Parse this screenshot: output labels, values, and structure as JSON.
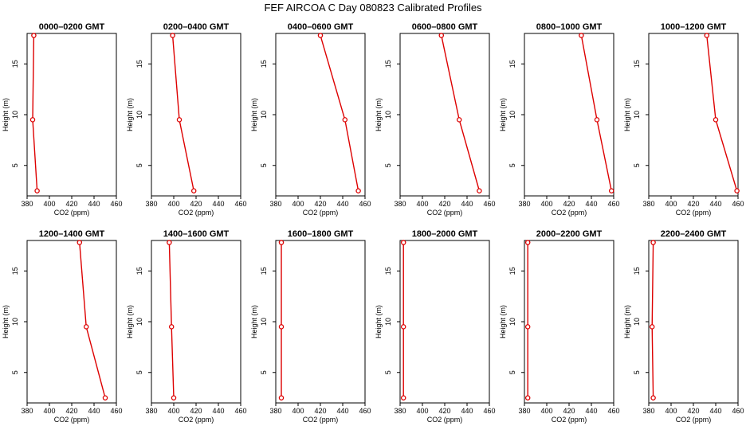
{
  "figure": {
    "title": "FEF AIRCOA C  Day 080823  Calibrated Profiles"
  },
  "colors": {
    "profile_line": "#dd0000",
    "point_marker": "#dd0000",
    "axes": "#000000"
  },
  "chart_data": [
    {
      "type": "line",
      "title": "0000–0200 GMT",
      "xlabel": "CO2 (ppm)",
      "ylabel": "Height (m)",
      "xlim": [
        380,
        460
      ],
      "ylim": [
        2,
        18
      ],
      "xticks": [
        380,
        400,
        420,
        440,
        460
      ],
      "yticks": [
        5,
        10,
        15
      ],
      "series": [
        {
          "x": [
            386,
            385,
            389
          ],
          "y": [
            17.8,
            9.5,
            2.5
          ]
        }
      ]
    },
    {
      "type": "line",
      "title": "0200–0400 GMT",
      "xlabel": "CO2 (ppm)",
      "ylabel": "Height (m)",
      "xlim": [
        380,
        460
      ],
      "ylim": [
        2,
        18
      ],
      "xticks": [
        380,
        400,
        420,
        440,
        460
      ],
      "yticks": [
        5,
        10,
        15
      ],
      "series": [
        {
          "x": [
            399,
            405,
            418
          ],
          "y": [
            17.8,
            9.5,
            2.5
          ]
        }
      ]
    },
    {
      "type": "line",
      "title": "0400–0600 GMT",
      "xlabel": "CO2 (ppm)",
      "ylabel": "Height (m)",
      "xlim": [
        380,
        460
      ],
      "ylim": [
        2,
        18
      ],
      "xticks": [
        380,
        400,
        420,
        440,
        460
      ],
      "yticks": [
        5,
        10,
        15
      ],
      "series": [
        {
          "x": [
            420,
            442,
            454
          ],
          "y": [
            17.8,
            9.5,
            2.5
          ]
        }
      ]
    },
    {
      "type": "line",
      "title": "0600–0800 GMT",
      "xlabel": "CO2 (ppm)",
      "ylabel": "Height (m)",
      "xlim": [
        380,
        460
      ],
      "ylim": [
        2,
        18
      ],
      "xticks": [
        380,
        400,
        420,
        440,
        460
      ],
      "yticks": [
        5,
        10,
        15
      ],
      "series": [
        {
          "x": [
            417,
            433,
            451
          ],
          "y": [
            17.8,
            9.5,
            2.5
          ]
        }
      ]
    },
    {
      "type": "line",
      "title": "0800–1000 GMT",
      "xlabel": "CO2 (ppm)",
      "ylabel": "Height (m)",
      "xlim": [
        380,
        460
      ],
      "ylim": [
        2,
        18
      ],
      "xticks": [
        380,
        400,
        420,
        440,
        460
      ],
      "yticks": [
        5,
        10,
        15
      ],
      "series": [
        {
          "x": [
            431,
            445,
            458
          ],
          "y": [
            17.8,
            9.5,
            2.5
          ]
        }
      ]
    },
    {
      "type": "line",
      "title": "1000–1200 GMT",
      "xlabel": "CO2 (ppm)",
      "ylabel": "Height (m)",
      "xlim": [
        380,
        460
      ],
      "ylim": [
        2,
        18
      ],
      "xticks": [
        380,
        400,
        420,
        440,
        460
      ],
      "yticks": [
        5,
        10,
        15
      ],
      "series": [
        {
          "x": [
            432,
            440,
            459
          ],
          "y": [
            17.8,
            9.5,
            2.5
          ]
        }
      ]
    },
    {
      "type": "line",
      "title": "1200–1400 GMT",
      "xlabel": "CO2 (ppm)",
      "ylabel": "Height (m)",
      "xlim": [
        380,
        460
      ],
      "ylim": [
        2,
        18
      ],
      "xticks": [
        380,
        400,
        420,
        440,
        460
      ],
      "yticks": [
        5,
        10,
        15
      ],
      "series": [
        {
          "x": [
            427,
            433,
            450
          ],
          "y": [
            17.8,
            9.5,
            2.5
          ]
        }
      ]
    },
    {
      "type": "line",
      "title": "1400–1600 GMT",
      "xlabel": "CO2 (ppm)",
      "ylabel": "Height (m)",
      "xlim": [
        380,
        460
      ],
      "ylim": [
        2,
        18
      ],
      "xticks": [
        380,
        400,
        420,
        440,
        460
      ],
      "yticks": [
        5,
        10,
        15
      ],
      "series": [
        {
          "x": [
            396,
            398,
            400
          ],
          "y": [
            17.8,
            9.5,
            2.5
          ]
        }
      ]
    },
    {
      "type": "line",
      "title": "1600–1800 GMT",
      "xlabel": "CO2 (ppm)",
      "ylabel": "Height (m)",
      "xlim": [
        380,
        460
      ],
      "ylim": [
        2,
        18
      ],
      "xticks": [
        380,
        400,
        420,
        440,
        460
      ],
      "yticks": [
        5,
        10,
        15
      ],
      "series": [
        {
          "x": [
            385,
            385,
            385
          ],
          "y": [
            17.8,
            9.5,
            2.5
          ]
        }
      ]
    },
    {
      "type": "line",
      "title": "1800–2000 GMT",
      "xlabel": "CO2 (ppm)",
      "ylabel": "Height (m)",
      "xlim": [
        380,
        460
      ],
      "ylim": [
        2,
        18
      ],
      "xticks": [
        380,
        400,
        420,
        440,
        460
      ],
      "yticks": [
        5,
        10,
        15
      ],
      "series": [
        {
          "x": [
            383,
            383,
            383
          ],
          "y": [
            17.8,
            9.5,
            2.5
          ]
        }
      ]
    },
    {
      "type": "line",
      "title": "2000–2200 GMT",
      "xlabel": "CO2 (ppm)",
      "ylabel": "Height (m)",
      "xlim": [
        380,
        460
      ],
      "ylim": [
        2,
        18
      ],
      "xticks": [
        380,
        400,
        420,
        440,
        460
      ],
      "yticks": [
        5,
        10,
        15
      ],
      "series": [
        {
          "x": [
            383,
            383,
            383
          ],
          "y": [
            17.8,
            9.5,
            2.5
          ]
        }
      ]
    },
    {
      "type": "line",
      "title": "2200–2400 GMT",
      "xlabel": "CO2 (ppm)",
      "ylabel": "Height (m)",
      "xlim": [
        380,
        460
      ],
      "ylim": [
        2,
        18
      ],
      "xticks": [
        380,
        400,
        420,
        440,
        460
      ],
      "yticks": [
        5,
        10,
        15
      ],
      "series": [
        {
          "x": [
            384,
            383,
            384
          ],
          "y": [
            17.8,
            9.5,
            2.5
          ]
        }
      ]
    }
  ]
}
